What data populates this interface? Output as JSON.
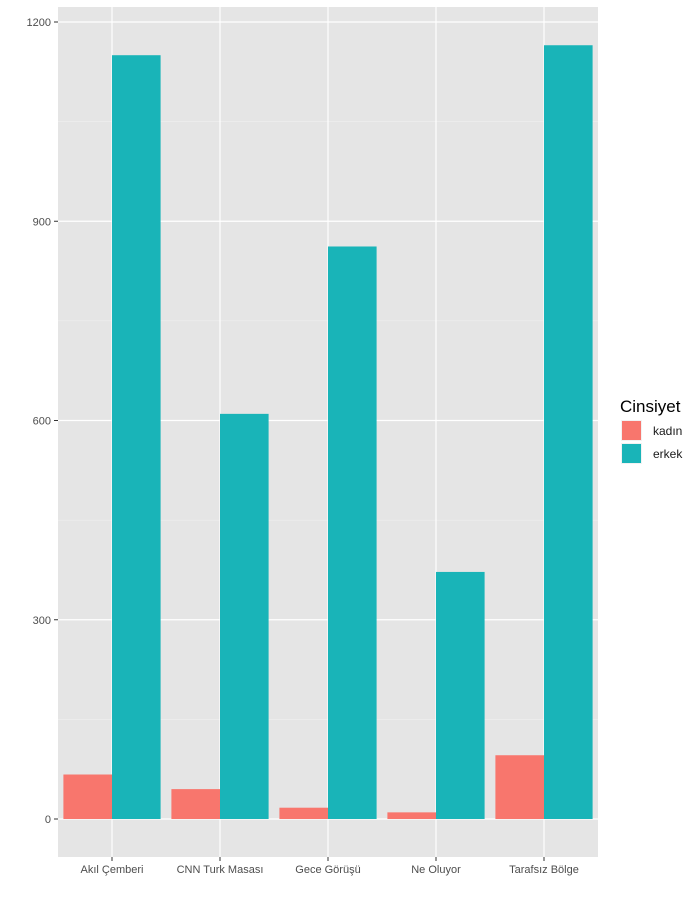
{
  "chart_data": {
    "type": "bar",
    "categories": [
      "Akıl Çemberi",
      "CNN Turk Masası",
      "Gece Görüşü",
      "Ne Oluyor",
      "Tarafsız Bölge"
    ],
    "series": [
      {
        "name": "kadın",
        "color": "#F8766D",
        "values": [
          67,
          45,
          17,
          10,
          96
        ]
      },
      {
        "name": "erkek",
        "color": "#19B4B8",
        "values": [
          1150,
          610,
          862,
          372,
          1165
        ]
      }
    ],
    "title": "",
    "xlabel": "",
    "ylabel": "",
    "ylim": [
      -60,
      1200
    ],
    "yticks": [
      "0",
      "300",
      "600",
      "900",
      "1200"
    ],
    "legend": {
      "title": "Cinsiyet",
      "position": "right"
    },
    "grid": true,
    "panel_color": "#E5E5E5"
  }
}
